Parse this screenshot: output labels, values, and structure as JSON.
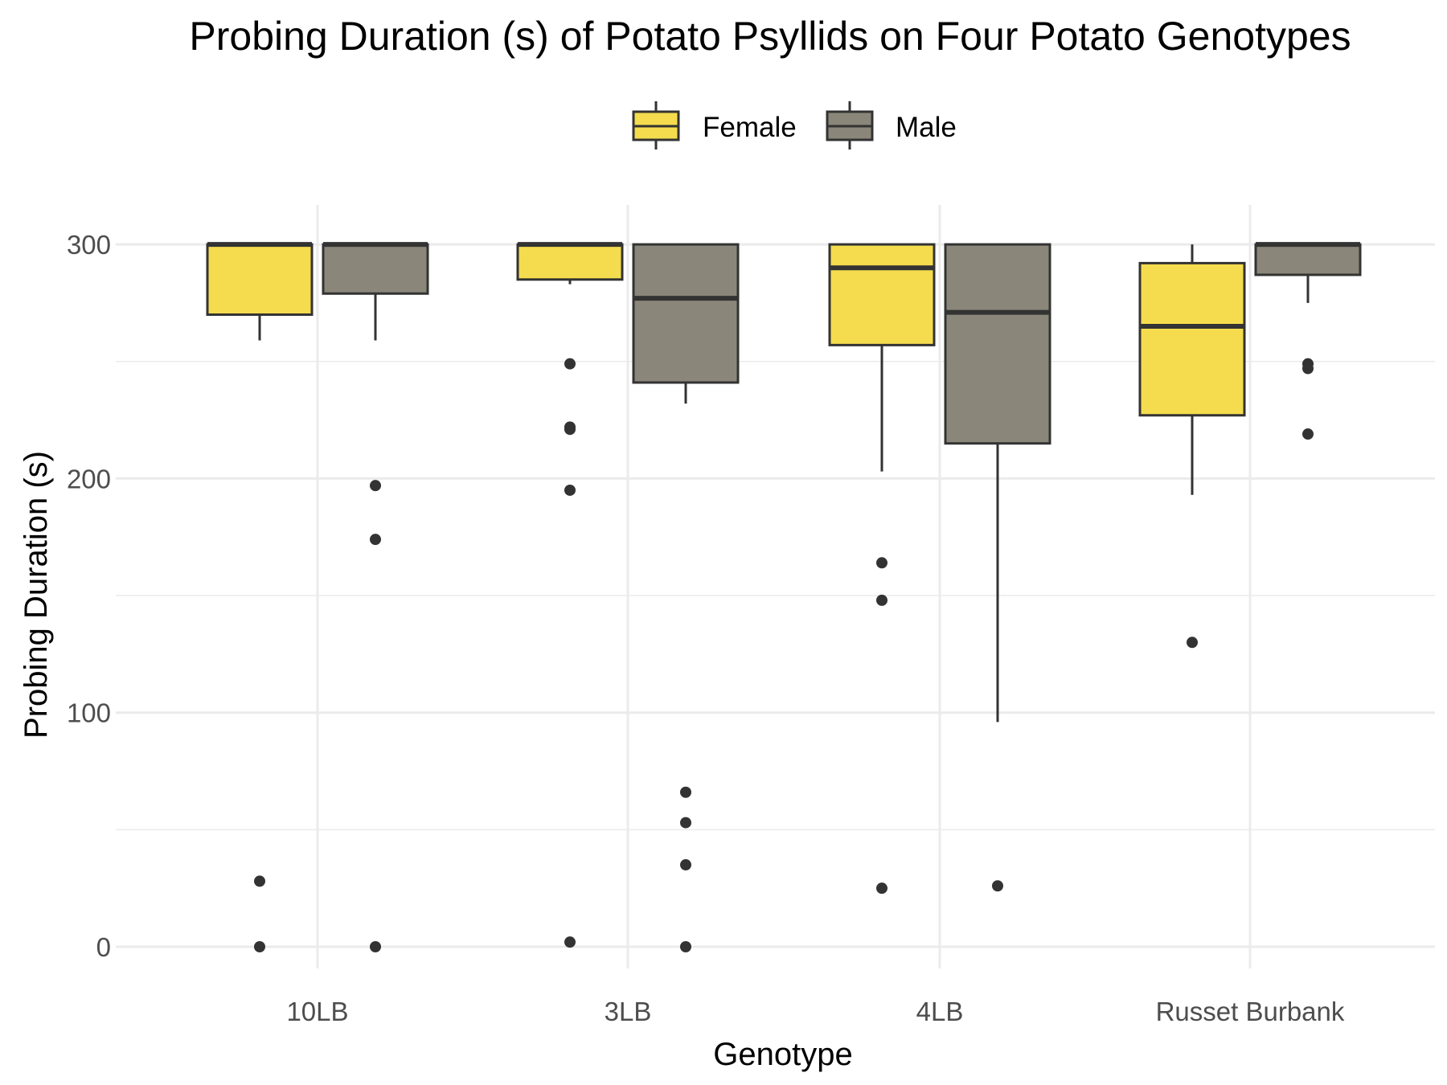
{
  "chart_data": {
    "type": "box",
    "title": "Probing Duration (s) of Potato Psyllids on Four Potato Genotypes",
    "xlabel": "Genotype",
    "ylabel": "Probing Duration (s)",
    "categories": [
      "10LB",
      "3LB",
      "4LB",
      "Russet Burbank"
    ],
    "ylim": [
      -15,
      316
    ],
    "yticks": [
      0,
      100,
      200,
      300
    ],
    "grid": true,
    "legend_position": "top",
    "series": [
      {
        "name": "Female",
        "color": "#F5DC4E",
        "boxes": [
          {
            "q1": 270,
            "median": 300,
            "q3": 300,
            "whisker_low": 259,
            "whisker_high": 300,
            "outliers": [
              28,
              0
            ]
          },
          {
            "q1": 285,
            "median": 300,
            "q3": 300,
            "whisker_low": 283,
            "whisker_high": 300,
            "outliers": [
              249,
              222,
              221,
              195,
              2
            ]
          },
          {
            "q1": 257,
            "median": 290,
            "q3": 300,
            "whisker_low": 203,
            "whisker_high": 300,
            "outliers": [
              164,
              148,
              25
            ]
          },
          {
            "q1": 227,
            "median": 265,
            "q3": 292,
            "whisker_low": 193,
            "whisker_high": 300,
            "outliers": [
              130
            ]
          }
        ]
      },
      {
        "name": "Male",
        "color": "#8A877A",
        "boxes": [
          {
            "q1": 279,
            "median": 300,
            "q3": 300,
            "whisker_low": 259,
            "whisker_high": 300,
            "outliers": [
              197,
              174,
              0
            ]
          },
          {
            "q1": 241,
            "median": 277,
            "q3": 300,
            "whisker_low": 232,
            "whisker_high": 300,
            "outliers": [
              66,
              53,
              35,
              0
            ]
          },
          {
            "q1": 215,
            "median": 271,
            "q3": 300,
            "whisker_low": 96,
            "whisker_high": 300,
            "outliers": [
              26
            ]
          },
          {
            "q1": 287,
            "median": 300,
            "q3": 300,
            "whisker_low": 275,
            "whisker_high": 300,
            "outliers": [
              249,
              247,
              219
            ]
          }
        ]
      }
    ]
  }
}
